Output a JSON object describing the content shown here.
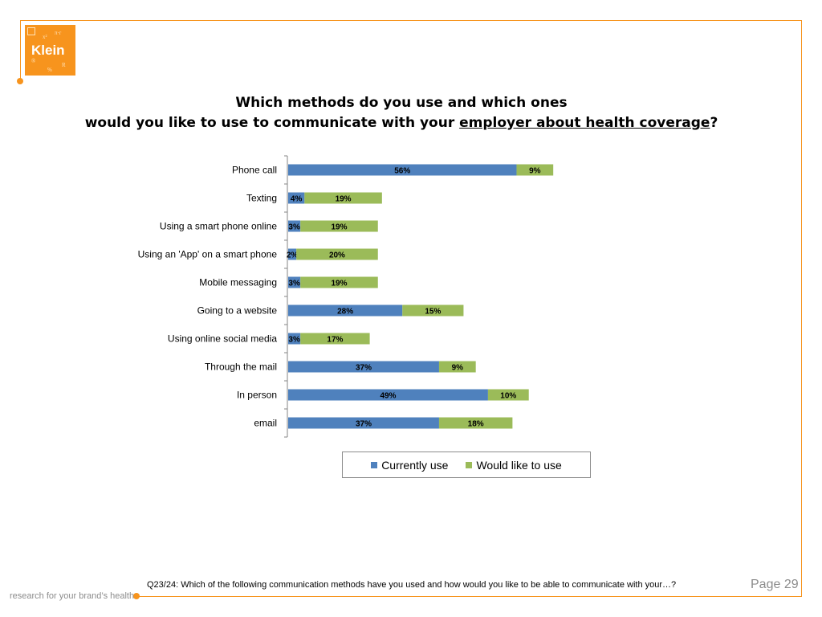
{
  "logo": {
    "text": "Klein"
  },
  "title": {
    "line1": "Which methods do you use and which ones",
    "line2_prefix": "would you like to use to communicate with your ",
    "line2_emphasis": "employer about health coverage",
    "line2_suffix": "?"
  },
  "legend": {
    "current_label": "Currently use",
    "would_like_label": "Would like to use"
  },
  "colors": {
    "current": "#4f81bd",
    "would_like": "#9bbb59",
    "accent": "#f7941d"
  },
  "chart_data": {
    "type": "bar",
    "orientation": "horizontal",
    "stacked": true,
    "title": "Which methods do you use and which ones would you like to use to communicate with your employer about health coverage?",
    "categories": [
      "Phone call",
      "Texting",
      "Using a smart phone online",
      "Using an 'App' on a smart phone",
      "Mobile messaging",
      "Going to a website",
      "Using online social media",
      "Through the mail",
      "In person",
      "email"
    ],
    "series": [
      {
        "name": "Currently use",
        "values": [
          56,
          4,
          3,
          2,
          3,
          28,
          3,
          37,
          49,
          37
        ]
      },
      {
        "name": "Would like to use",
        "values": [
          9,
          19,
          19,
          20,
          19,
          15,
          17,
          9,
          10,
          18
        ]
      }
    ],
    "value_suffix": "%",
    "xlabel": "",
    "ylabel": "",
    "xlim": [
      0,
      100
    ],
    "legend": "bottom"
  },
  "footer": {
    "question": "Q23/24:  Which of the following communication methods have you used and how would you like to be able to communicate with your…?",
    "page": "Page 29",
    "tagline": "research for your brand’s health"
  }
}
